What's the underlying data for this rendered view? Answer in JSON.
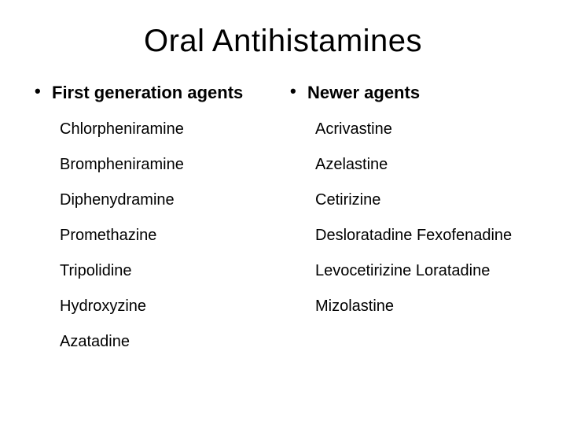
{
  "title": "Oral Antihistamines",
  "left": {
    "heading": "First generation agents",
    "items": [
      "Chlorpheniramine",
      "Brompheniramine",
      "Diphenydramine",
      "Promethazine",
      "Tripolidine",
      "Hydroxyzine",
      "Azatadine"
    ]
  },
  "right": {
    "heading": "Newer agents",
    "items": [
      "Acrivastine",
      "Azelastine",
      "Cetirizine",
      "Desloratadine Fexofenadine",
      "Levocetirizine Loratadine",
      "Mizolastine"
    ]
  },
  "colors": {
    "background": "#ffffff",
    "text": "#000000"
  },
  "typography": {
    "title_fontsize": 40,
    "heading_fontsize": 22,
    "item_fontsize": 20,
    "font_family": "Arial"
  }
}
